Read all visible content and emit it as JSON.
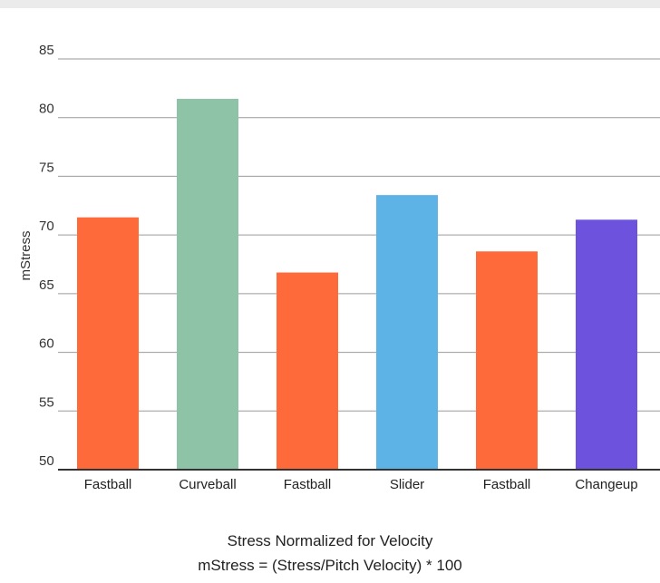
{
  "chart_data": {
    "type": "bar",
    "categories": [
      "Fastball",
      "Curveball",
      "Fastball",
      "Slider",
      "Fastball",
      "Changeup"
    ],
    "values": [
      71.5,
      81.6,
      66.8,
      73.4,
      68.6,
      71.3
    ],
    "colors": [
      "#ff6a3a",
      "#8fc3a8",
      "#ff6a3a",
      "#5eb3e6",
      "#ff6a3a",
      "#6c52dc"
    ],
    "ylabel": "mStress",
    "xlabel": "Stress Normalized for Velocity",
    "subtitle": "mStress = (Stress/Pitch Velocity) * 100",
    "ylim": [
      50,
      85
    ],
    "yticks": [
      50,
      55,
      60,
      65,
      70,
      75,
      80,
      85
    ],
    "grid": true,
    "legend": "none"
  }
}
